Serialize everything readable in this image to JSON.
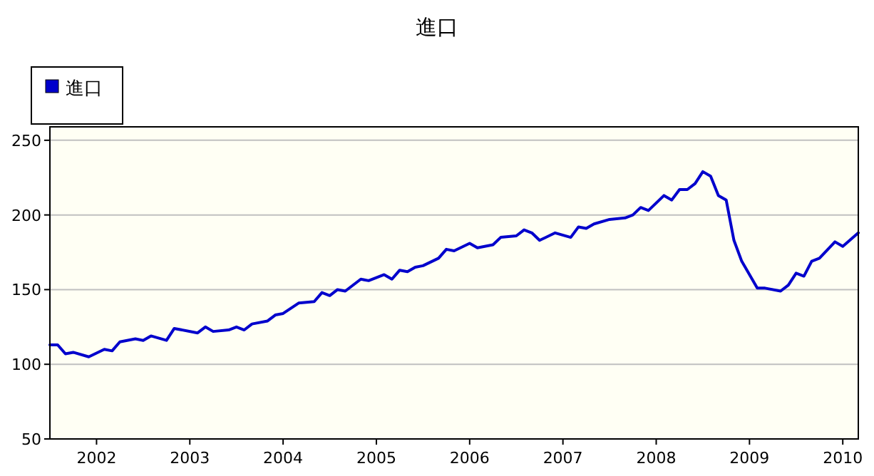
{
  "chart_data": {
    "type": "line",
    "title": "進口",
    "x": [
      "2001-07",
      "2001-08",
      "2001-09",
      "2001-10",
      "2001-12",
      "2002-02",
      "2002-03",
      "2002-04",
      "2002-06",
      "2002-07",
      "2002-08",
      "2002-10",
      "2002-11",
      "2003-02",
      "2003-03",
      "2003-04",
      "2003-06",
      "2003-07",
      "2003-08",
      "2003-09",
      "2003-11",
      "2003-12",
      "2004-01",
      "2004-03",
      "2004-05",
      "2004-06",
      "2004-07",
      "2004-08",
      "2004-09",
      "2004-11",
      "2004-12",
      "2005-02",
      "2005-03",
      "2005-04",
      "2005-05",
      "2005-06",
      "2005-07",
      "2005-09",
      "2005-10",
      "2005-11",
      "2006-01",
      "2006-02",
      "2006-04",
      "2006-05",
      "2006-07",
      "2006-08",
      "2006-09",
      "2006-10",
      "2006-12",
      "2007-02",
      "2007-03",
      "2007-04",
      "2007-05",
      "2007-07",
      "2007-09",
      "2007-10",
      "2007-11",
      "2007-12",
      "2008-02",
      "2008-03",
      "2008-04",
      "2008-05",
      "2008-06",
      "2008-07",
      "2008-08",
      "2008-09",
      "2008-10",
      "2008-11",
      "2008-12",
      "2009-02",
      "2009-03",
      "2009-05",
      "2009-06",
      "2009-07",
      "2009-08",
      "2009-09",
      "2009-10",
      "2009-12",
      "2010-01",
      "2010-03"
    ],
    "series": [
      {
        "name": "進口",
        "color": "#0000cc",
        "values": [
          113,
          113,
          107,
          108,
          105,
          110,
          109,
          115,
          117,
          116,
          119,
          116,
          124,
          121,
          125,
          122,
          123,
          125,
          123,
          127,
          129,
          133,
          134,
          141,
          142,
          148,
          146,
          150,
          149,
          157,
          156,
          160,
          157,
          163,
          162,
          165,
          166,
          171,
          177,
          176,
          181,
          178,
          180,
          185,
          186,
          190,
          188,
          183,
          188,
          185,
          192,
          191,
          194,
          197,
          198,
          200,
          205,
          203,
          213,
          210,
          217,
          217,
          221,
          229,
          226,
          213,
          210,
          183,
          169,
          151,
          151,
          149,
          153,
          161,
          159,
          169,
          171,
          182,
          179,
          188
        ]
      }
    ],
    "xlim": [
      "2001-07",
      "2010-03"
    ],
    "xticks": [
      "2002",
      "2003",
      "2004",
      "2005",
      "2006",
      "2007",
      "2008",
      "2009",
      "2010"
    ],
    "ylim": [
      50,
      259
    ],
    "yticks": [
      50,
      100,
      150,
      200,
      250
    ],
    "grid": "y",
    "legend": "top left",
    "line_style": "solid"
  }
}
